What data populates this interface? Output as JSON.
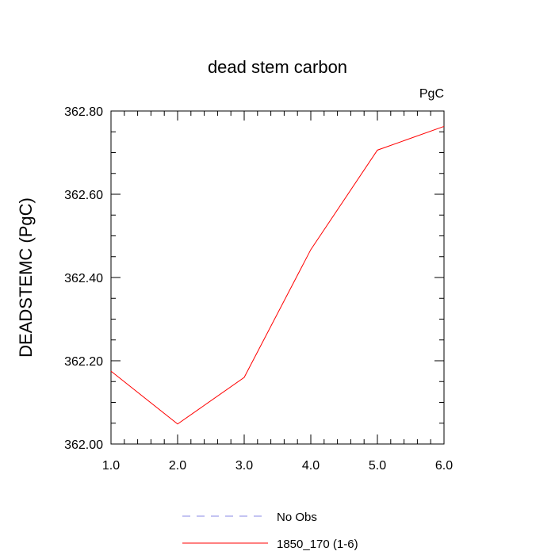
{
  "chart_data": {
    "type": "line",
    "title": "dead stem carbon",
    "units_label": "PgC",
    "ylabel": "DEADSTEMC  (PgC)",
    "xlabel": "",
    "xlim": [
      1.0,
      6.0
    ],
    "ylim": [
      362.0,
      362.8
    ],
    "x_ticks": [
      "1.0",
      "2.0",
      "3.0",
      "4.0",
      "5.0",
      "6.0"
    ],
    "y_ticks": [
      "362.00",
      "362.20",
      "362.40",
      "362.60",
      "362.80"
    ],
    "grid": false,
    "legend_position": "bottom",
    "series": [
      {
        "name": "No Obs",
        "style": "dashed",
        "color": "#8a8ae6",
        "x": [],
        "y": []
      },
      {
        "name": "1850_170 (1-6)",
        "style": "solid",
        "color": "#ff0000",
        "x": [
          1,
          2,
          3,
          4,
          5,
          6
        ],
        "y": [
          362.175,
          362.048,
          362.16,
          362.467,
          362.706,
          362.763
        ]
      }
    ]
  }
}
